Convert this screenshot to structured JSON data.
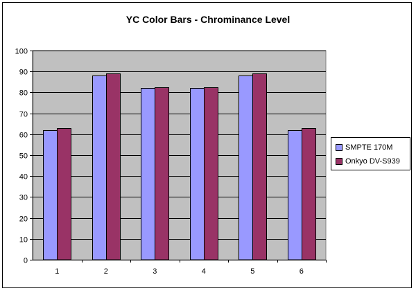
{
  "chart_data": {
    "type": "bar",
    "title": "YC Color Bars - Chrominance Level",
    "xlabel": "",
    "ylabel": "",
    "categories": [
      "1",
      "2",
      "3",
      "4",
      "5",
      "6"
    ],
    "series": [
      {
        "name": "SMPTE 170M",
        "color": "#9999ff",
        "values": [
          62,
          88,
          82,
          82,
          88,
          62
        ]
      },
      {
        "name": "Onkyo DV-S939",
        "color": "#993366",
        "values": [
          63,
          89,
          82.5,
          82.5,
          89,
          63
        ]
      }
    ],
    "ylim": [
      0,
      100
    ],
    "yticks": [
      "0",
      "10",
      "20",
      "30",
      "40",
      "50",
      "60",
      "70",
      "80",
      "90",
      "100"
    ],
    "grid": true,
    "plot_background": "#c0c0c0",
    "legend_position": "right"
  }
}
